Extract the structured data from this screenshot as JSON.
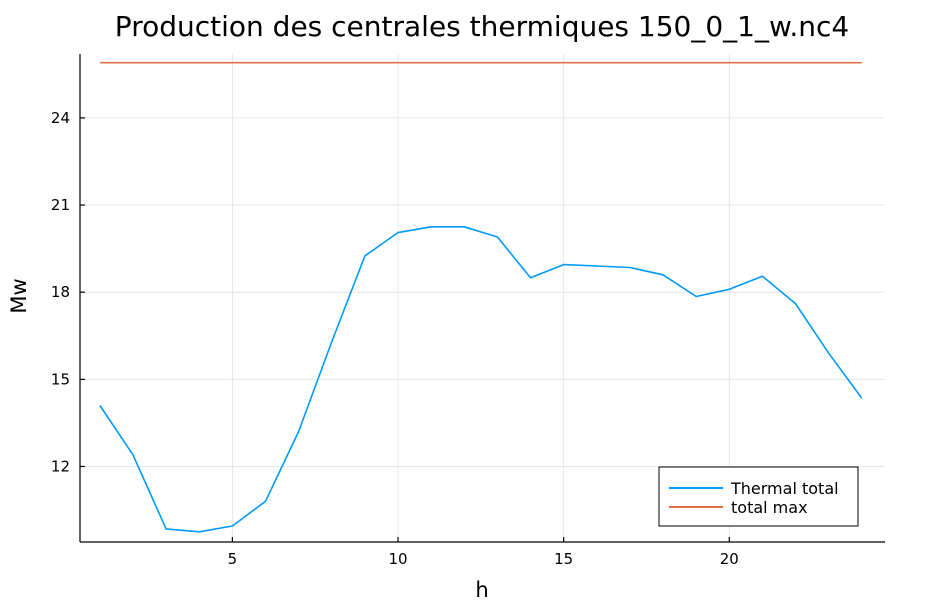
{
  "chart_data": {
    "type": "line",
    "title": "Production des centrales thermiques 150_0_1_w.nc4",
    "xlabel": "h",
    "ylabel": "Mw",
    "xlim": [
      0.4,
      24.7
    ],
    "ylim": [
      9.4,
      26.2
    ],
    "xticks": [
      5,
      10,
      15,
      20
    ],
    "yticks": [
      12,
      15,
      18,
      21,
      24
    ],
    "grid": true,
    "legend_position": "bottom-right",
    "series": [
      {
        "name": "Thermal total",
        "color": "#009af9",
        "x": [
          1,
          2,
          3,
          4,
          5,
          6,
          7,
          8,
          9,
          10,
          11,
          12,
          13,
          14,
          15,
          16,
          17,
          18,
          19,
          20,
          21,
          22,
          23,
          24
        ],
        "y": [
          14.1,
          12.4,
          9.85,
          9.75,
          9.95,
          10.8,
          13.2,
          16.3,
          19.25,
          20.05,
          20.25,
          20.25,
          19.9,
          18.5,
          18.95,
          18.9,
          18.85,
          18.6,
          17.85,
          18.1,
          18.55,
          17.6,
          15.9,
          14.35
        ]
      },
      {
        "name": "total max",
        "color": "#e26f46",
        "x": [
          1,
          24
        ],
        "y": [
          25.9,
          25.9
        ]
      }
    ]
  }
}
